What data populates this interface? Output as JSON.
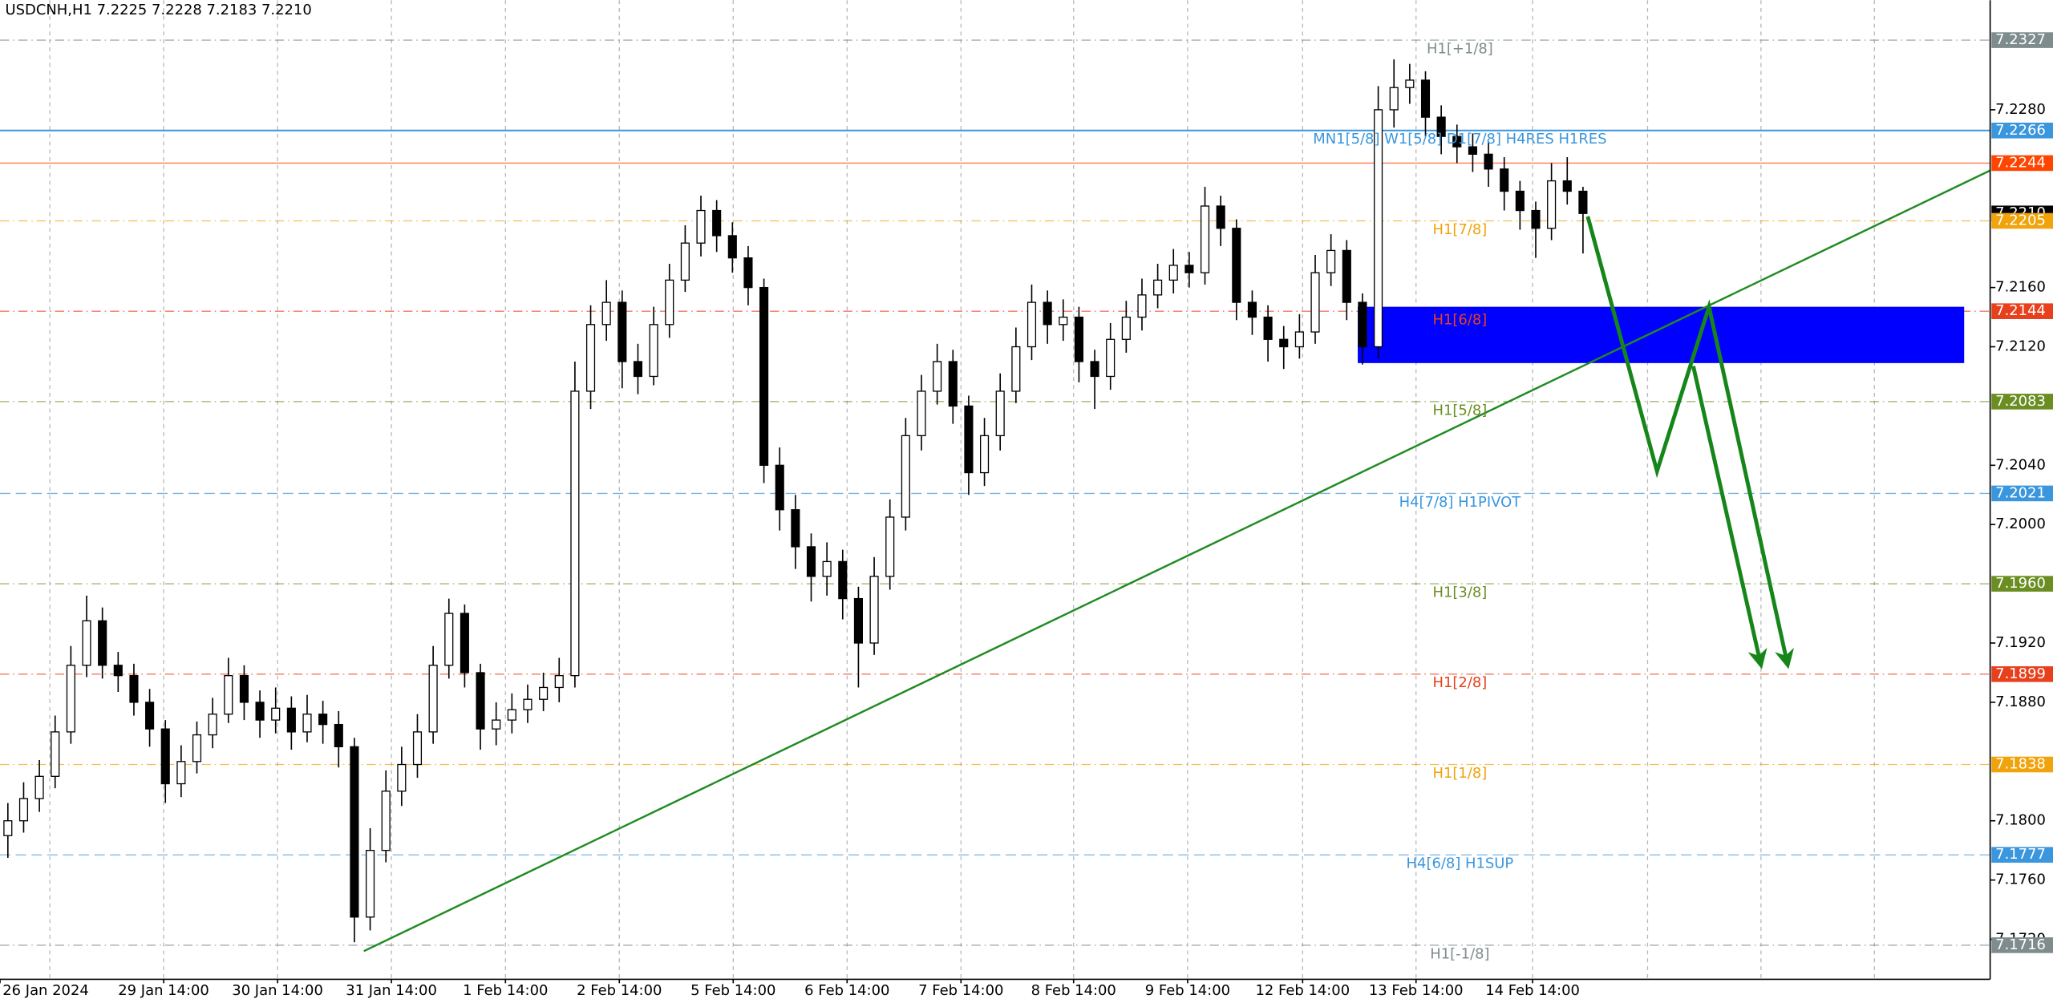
{
  "chart_data": {
    "type": "candlestick",
    "title": "USDCNH,H1  7.2225 7.2228 7.2183 7.2210",
    "x": [
      0,
      1,
      2,
      3,
      4,
      5,
      6,
      7,
      8,
      9,
      10,
      11,
      12,
      13,
      14,
      15,
      16,
      17,
      18,
      19,
      20,
      21,
      22,
      23,
      24,
      25,
      26,
      27,
      28,
      29,
      30,
      31,
      32,
      33,
      34,
      35,
      36,
      37,
      38,
      39,
      40,
      41,
      42,
      43,
      44,
      45,
      46,
      47,
      48,
      49,
      50,
      51,
      52,
      53,
      54,
      55,
      56,
      57,
      58,
      59,
      60,
      61,
      62,
      63,
      64,
      65,
      66,
      67,
      68,
      69,
      70,
      71,
      72,
      73,
      74,
      75,
      76,
      77,
      78,
      79,
      80,
      81,
      82,
      83,
      84,
      85,
      86,
      87,
      88,
      89,
      90,
      91,
      92,
      93,
      94,
      95,
      96,
      97,
      98,
      99,
      100
    ],
    "open": [
      7.179,
      7.18,
      7.1815,
      7.183,
      7.186,
      7.1905,
      7.1935,
      7.1905,
      7.1898,
      7.188,
      7.1862,
      7.1825,
      7.184,
      7.1858,
      7.1872,
      7.1898,
      7.188,
      7.1868,
      7.1876,
      7.186,
      7.1872,
      7.1865,
      7.185,
      7.1735,
      7.178,
      7.182,
      7.1838,
      7.186,
      7.1905,
      7.194,
      7.19,
      7.1862,
      7.1868,
      7.1875,
      7.1882,
      7.189,
      7.1898,
      7.209,
      7.2135,
      7.215,
      7.211,
      7.21,
      7.2135,
      7.2165,
      7.219,
      7.2212,
      7.2195,
      7.218,
      7.216,
      7.204,
      7.201,
      7.1985,
      7.1965,
      7.1975,
      7.195,
      7.192,
      7.1965,
      7.2005,
      7.206,
      7.209,
      7.211,
      7.208,
      7.2035,
      7.206,
      7.209,
      7.212,
      7.215,
      7.2135,
      7.214,
      7.211,
      7.21,
      7.2125,
      7.214,
      7.2155,
      7.2165,
      7.2175,
      7.217,
      7.2215,
      7.22,
      7.215,
      7.214,
      7.2125,
      7.212,
      7.213,
      7.217,
      7.2185,
      7.215,
      7.212,
      7.228,
      7.2295,
      7.23,
      7.2275,
      7.2262,
      7.2255,
      7.225,
      7.224,
      7.2225,
      7.2212,
      7.22,
      7.2232,
      7.2225
    ],
    "high": [
      7.1812,
      7.1826,
      7.1841,
      7.1871,
      7.1918,
      7.1952,
      7.1944,
      7.1914,
      7.1906,
      7.1889,
      7.1868,
      7.1851,
      7.1867,
      7.1883,
      7.191,
      7.1905,
      7.1888,
      7.189,
      7.1884,
      7.1885,
      7.1881,
      7.1874,
      7.1856,
      7.1795,
      7.1834,
      7.185,
      7.1872,
      7.1918,
      7.195,
      7.1946,
      7.1906,
      7.188,
      7.1886,
      7.1892,
      7.19,
      7.191,
      7.211,
      7.2148,
      7.2165,
      7.2158,
      7.2122,
      7.2147,
      7.2176,
      7.2202,
      7.2222,
      7.2219,
      7.2204,
      7.2188,
      7.2166,
      7.2052,
      7.202,
      7.1994,
      7.1988,
      7.1983,
      7.1958,
      7.1978,
      7.2017,
      7.2072,
      7.2101,
      7.2122,
      7.2118,
      7.2087,
      7.2072,
      7.2102,
      7.2133,
      7.2162,
      7.2158,
      7.2152,
      7.2147,
      7.2118,
      7.2136,
      7.2151,
      7.2166,
      7.2176,
      7.2186,
      7.2184,
      7.2228,
      7.2222,
      7.2206,
      7.2158,
      7.2148,
      7.2134,
      7.2142,
      7.2182,
      7.2196,
      7.2192,
      7.2156,
      7.2296,
      7.2314,
      7.2311,
      7.2306,
      7.2283,
      7.227,
      7.2264,
      7.2258,
      7.2248,
      7.2232,
      7.2218,
      7.2244,
      7.2248,
      7.2228
    ],
    "low": [
      7.1775,
      7.1792,
      7.1806,
      7.1822,
      7.1852,
      7.1897,
      7.1896,
      7.1887,
      7.1871,
      7.185,
      7.1812,
      7.1816,
      7.1832,
      7.1849,
      7.1866,
      7.1868,
      7.1856,
      7.1859,
      7.1848,
      7.1853,
      7.1852,
      7.1836,
      7.1718,
      7.1726,
      7.1772,
      7.181,
      7.1829,
      7.1852,
      7.1896,
      7.189,
      7.1848,
      7.1851,
      7.1859,
      7.1866,
      7.1874,
      7.188,
      7.189,
      7.2078,
      7.2124,
      7.2092,
      7.2088,
      7.2094,
      7.2126,
      7.2157,
      7.2181,
      7.2184,
      7.217,
      7.2148,
      7.2028,
      7.1996,
      7.197,
      7.1948,
      7.1952,
      7.1936,
      7.189,
      7.1912,
      7.1956,
      7.1996,
      7.205,
      7.2081,
      7.2068,
      7.202,
      7.2026,
      7.205,
      7.2082,
      7.2111,
      7.2122,
      7.2124,
      7.2096,
      7.2078,
      7.2091,
      7.2116,
      7.2131,
      7.2146,
      7.2156,
      7.216,
      7.2162,
      7.2188,
      7.2138,
      7.2128,
      7.211,
      7.2105,
      7.2112,
      7.2122,
      7.2161,
      7.2138,
      7.2108,
      7.2112,
      7.2268,
      7.2284,
      7.2262,
      7.225,
      7.2244,
      7.2238,
      7.2228,
      7.2212,
      7.2199,
      7.218,
      7.2192,
      7.2216,
      7.2183
    ],
    "close": [
      7.18,
      7.1815,
      7.183,
      7.186,
      7.1905,
      7.1935,
      7.1905,
      7.1898,
      7.188,
      7.1862,
      7.1825,
      7.184,
      7.1858,
      7.1872,
      7.1898,
      7.188,
      7.1868,
      7.1876,
      7.186,
      7.1872,
      7.1865,
      7.185,
      7.1735,
      7.178,
      7.182,
      7.1838,
      7.186,
      7.1905,
      7.194,
      7.19,
      7.1862,
      7.1868,
      7.1875,
      7.1882,
      7.189,
      7.1898,
      7.209,
      7.2135,
      7.215,
      7.211,
      7.21,
      7.2135,
      7.2165,
      7.219,
      7.2212,
      7.2195,
      7.218,
      7.216,
      7.204,
      7.201,
      7.1985,
      7.1965,
      7.1975,
      7.195,
      7.192,
      7.1965,
      7.2005,
      7.206,
      7.209,
      7.211,
      7.208,
      7.2035,
      7.206,
      7.209,
      7.212,
      7.215,
      7.2135,
      7.214,
      7.211,
      7.21,
      7.2125,
      7.214,
      7.2155,
      7.2165,
      7.2175,
      7.217,
      7.2215,
      7.22,
      7.215,
      7.214,
      7.2125,
      7.212,
      7.213,
      7.217,
      7.2185,
      7.215,
      7.212,
      7.228,
      7.2295,
      7.23,
      7.2275,
      7.2262,
      7.2255,
      7.225,
      7.224,
      7.2225,
      7.2212,
      7.22,
      7.2232,
      7.2225,
      7.221
    ],
    "up_color": "#ffffff",
    "down_color": "#000000",
    "xlim": [
      -0.5,
      125.85
    ],
    "ylim": [
      7.1693,
      7.2354
    ],
    "yticks": [
      {
        "value": 7.228,
        "label": "7.2280"
      },
      {
        "value": 7.216,
        "label": "7.2160"
      },
      {
        "value": 7.212,
        "label": "7.2120"
      },
      {
        "value": 7.204,
        "label": "7.2040"
      },
      {
        "value": 7.2,
        "label": "7.2000"
      },
      {
        "value": 7.192,
        "label": "7.1920"
      },
      {
        "value": 7.188,
        "label": "7.1880"
      },
      {
        "value": 7.18,
        "label": "7.1800"
      },
      {
        "value": 7.176,
        "label": "7.1760"
      },
      {
        "value": 7.172,
        "label": "7.1720"
      }
    ],
    "xticks": [
      {
        "value": -0.5,
        "label": "26 Jan 2024"
      },
      {
        "value": 9.89,
        "label": "29 Jan 14:00"
      },
      {
        "value": 17.12,
        "label": "30 Jan 14:00"
      },
      {
        "value": 24.35,
        "label": "31 Jan 14:00"
      },
      {
        "value": 31.59,
        "label": "1 Feb 14:00"
      },
      {
        "value": 38.82,
        "label": "2 Feb 14:00"
      },
      {
        "value": 46.05,
        "label": "5 Feb 14:00"
      },
      {
        "value": 53.28,
        "label": "6 Feb 14:00"
      },
      {
        "value": 60.51,
        "label": "7 Feb 14:00"
      },
      {
        "value": 67.66,
        "label": "8 Feb 14:00"
      },
      {
        "value": 74.9,
        "label": "9 Feb 14:00"
      },
      {
        "value": 82.2,
        "label": "12 Feb 14:00"
      },
      {
        "value": 89.4,
        "label": "13 Feb 14:00"
      },
      {
        "value": 96.8,
        "label": "14 Feb 14:00"
      }
    ],
    "xgrid": [
      2.66,
      9.89,
      17.12,
      24.35,
      31.59,
      38.82,
      46.05,
      53.28,
      60.51,
      67.66,
      74.9,
      82.2,
      89.4,
      96.8,
      104.1,
      111.3,
      118.5
    ],
    "grid": true,
    "levels": [
      {
        "value": 7.2327,
        "value_label": "7.2327",
        "text": "H1[+1/8]",
        "color": "#7f8c8d",
        "style": "dashdot"
      },
      {
        "value": 7.2266,
        "value_label": "7.2266",
        "text": "MN1[5/8] W1[5/8] D1[7/8] H4RES H1RES",
        "color": "#3a96dd",
        "style": "solid"
      },
      {
        "value": 7.2244,
        "value_label": "7.2244",
        "color": "#ff4500",
        "style": "thin"
      },
      {
        "value": 7.221,
        "value_label": "7.2210",
        "color": "#000000",
        "style": "none"
      },
      {
        "value": 7.2205,
        "value_label": "7.2205",
        "text": "H1[7/8]",
        "color": "#f0a30a",
        "style": "dashdot"
      },
      {
        "value": 7.2144,
        "value_label": "7.2144",
        "text": "H1[6/8]",
        "color": "#e8401c",
        "style": "dashdot"
      },
      {
        "value": 7.2083,
        "value_label": "7.2083",
        "text": "H1[5/8]",
        "color": "#6b8e23",
        "style": "dashdot"
      },
      {
        "value": 7.2021,
        "value_label": "7.2021",
        "text": "H4[7/8] H1PIVOT",
        "color": "#3a96dd",
        "style": "dash"
      },
      {
        "value": 7.196,
        "value_label": "7.1960",
        "text": "H1[3/8]",
        "color": "#6b8e23",
        "style": "dashdot"
      },
      {
        "value": 7.1899,
        "value_label": "7.1899",
        "text": "H1[2/8]",
        "color": "#e8401c",
        "style": "dashdot"
      },
      {
        "value": 7.1838,
        "value_label": "7.1838",
        "text": "H1[1/8]",
        "color": "#f0a30a",
        "style": "dashdot"
      },
      {
        "value": 7.1777,
        "value_label": "7.1777",
        "text": "H4[6/8] H1SUP",
        "color": "#3a96dd",
        "style": "dash"
      },
      {
        "value": 7.1716,
        "value_label": "7.1716",
        "text": "H1[-1/8]",
        "color": "#7f8c8d",
        "style": "dashdot"
      }
    ],
    "zone": {
      "x": [
        85.7,
        124.2
      ],
      "y": [
        7.2147,
        7.2109
      ],
      "color": "#0000ff"
    },
    "drawings": [
      {
        "kind": "trendline",
        "color": "#228b22",
        "x": [
          22.6,
          125.85
        ],
        "y": [
          7.1712,
          7.2239
        ]
      },
      {
        "kind": "arrow",
        "color": "#17861a",
        "x": [
          100.3,
          104.7,
          108.0,
          113.0
        ],
        "y": [
          7.2208,
          7.2036,
          7.2147,
          7.1905
        ]
      },
      {
        "kind": "arrow",
        "color": "#17861a",
        "x": [
          107.0,
          111.3
        ],
        "y": [
          7.2107,
          7.1905
        ]
      }
    ]
  }
}
